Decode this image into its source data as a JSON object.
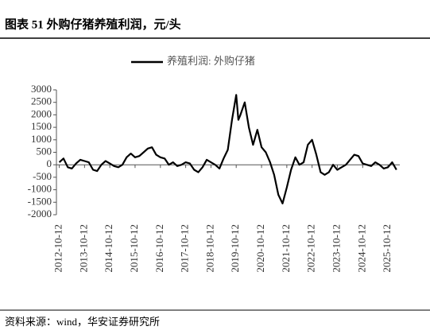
{
  "chart_data": {
    "type": "line",
    "title": "图表 51 外购仔猪养殖利润，元/头",
    "source": "资料来源：wind，华安证券研究所",
    "series": [
      {
        "name": "养殖利润: 外购仔猪",
        "color": "#000000",
        "x": [
          "2012-10-12",
          "2012-12-12",
          "2013-02-12",
          "2013-04-12",
          "2013-06-12",
          "2013-08-12",
          "2013-10-12",
          "2013-12-12",
          "2014-02-12",
          "2014-04-12",
          "2014-06-12",
          "2014-08-12",
          "2014-10-12",
          "2014-12-12",
          "2015-02-12",
          "2015-04-12",
          "2015-06-12",
          "2015-08-12",
          "2015-10-12",
          "2015-12-12",
          "2016-02-12",
          "2016-04-12",
          "2016-06-12",
          "2016-08-12",
          "2016-10-12",
          "2016-12-12",
          "2017-02-12",
          "2017-04-12",
          "2017-06-12",
          "2017-08-12",
          "2017-10-12",
          "2017-12-12",
          "2018-02-12",
          "2018-04-12",
          "2018-06-12",
          "2018-08-12",
          "2018-10-12",
          "2018-12-12",
          "2019-02-12",
          "2019-04-12",
          "2019-06-12",
          "2019-08-12",
          "2019-10-12",
          "2019-11-12",
          "2019-12-12",
          "2020-02-12",
          "2020-04-12",
          "2020-06-12",
          "2020-08-12",
          "2020-10-12",
          "2020-12-12",
          "2021-02-12",
          "2021-04-12",
          "2021-06-12",
          "2021-08-12",
          "2021-10-12",
          "2021-12-12",
          "2022-02-12",
          "2022-04-12",
          "2022-06-12",
          "2022-08-12",
          "2022-10-12",
          "2022-12-12",
          "2023-02-12",
          "2023-04-12",
          "2023-06-12",
          "2023-08-12",
          "2023-10-12",
          "2023-12-12",
          "2024-02-12",
          "2024-04-12",
          "2024-06-12",
          "2024-08-12",
          "2024-10-12",
          "2024-12-12",
          "2025-02-12",
          "2025-04-12",
          "2025-06-12",
          "2025-08-12",
          "2025-10-12",
          "2025-12-12",
          "2026-02-12"
        ],
        "values": [
          100,
          250,
          -100,
          -150,
          50,
          200,
          150,
          100,
          -200,
          -250,
          0,
          150,
          50,
          -50,
          -100,
          0,
          300,
          450,
          300,
          350,
          500,
          650,
          700,
          400,
          300,
          250,
          0,
          100,
          -50,
          0,
          100,
          50,
          -200,
          -300,
          -100,
          200,
          100,
          0,
          -150,
          250,
          600,
          1800,
          2800,
          1800,
          2000,
          2500,
          1500,
          800,
          1400,
          700,
          500,
          100,
          -400,
          -1200,
          -1550,
          -900,
          -200,
          300,
          0,
          100,
          800,
          1000,
          400,
          -300,
          -400,
          -300,
          0,
          -200,
          -100,
          0,
          200,
          400,
          350,
          50,
          0,
          -50,
          100,
          0,
          -150,
          -100,
          100,
          -200
        ]
      }
    ],
    "xlim": [
      "2012-09-01",
      "2026-04-01"
    ],
    "xticks": [
      "2012-10-12",
      "2013-10-12",
      "2014-10-12",
      "2015-10-12",
      "2016-10-12",
      "2017-10-12",
      "2018-10-12",
      "2019-10-12",
      "2020-10-12",
      "2021-10-12",
      "2022-10-12",
      "2023-10-12",
      "2024-10-12",
      "2025-10-12"
    ],
    "ylim": [
      -2000,
      3000
    ],
    "yticks": [
      -2000,
      -1500,
      -1000,
      -500,
      0,
      500,
      1000,
      1500,
      2000,
      2500,
      3000
    ]
  }
}
